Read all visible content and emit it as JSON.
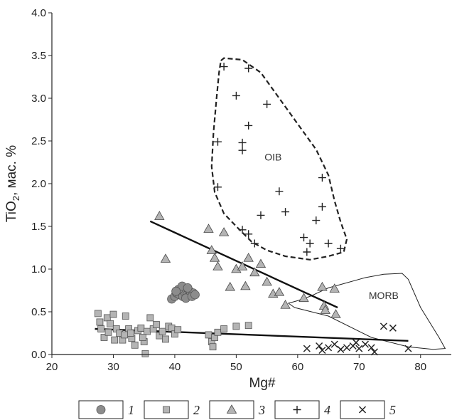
{
  "chart_data": {
    "type": "scatter",
    "title": "",
    "xlabel": "Mg#",
    "ylabel": {
      "base": "TiO",
      "sub": "2",
      "rest": ", мас. %"
    },
    "xlim": [
      20,
      85
    ],
    "ylim": [
      0,
      4.0
    ],
    "xticks": [
      "20",
      "30",
      "40",
      "50",
      "60",
      "70",
      "80"
    ],
    "yticks": [
      "0.0",
      "0.5",
      "1.0",
      "1.5",
      "2.0",
      "2.5",
      "3.0",
      "3.5",
      "4.0"
    ],
    "grid": false,
    "series": [
      {
        "name": "1",
        "marker": "circle",
        "color": "#8c8c8c",
        "points": [
          [
            39.5,
            0.65
          ],
          [
            40,
            0.68
          ],
          [
            40.3,
            0.72
          ],
          [
            40.8,
            0.7
          ],
          [
            41,
            0.75
          ],
          [
            41.3,
            0.68
          ],
          [
            41.6,
            0.73
          ],
          [
            42,
            0.7
          ],
          [
            42.3,
            0.75
          ],
          [
            42.6,
            0.71
          ],
          [
            43,
            0.72
          ],
          [
            41.8,
            0.66
          ],
          [
            40.6,
            0.76
          ],
          [
            42.8,
            0.68
          ],
          [
            41.2,
            0.8
          ],
          [
            40.2,
            0.74
          ],
          [
            43.3,
            0.7
          ],
          [
            42.1,
            0.78
          ]
        ]
      },
      {
        "name": "2",
        "marker": "square",
        "color": "#b4b4b4",
        "points": [
          [
            27.5,
            0.48
          ],
          [
            27.8,
            0.38
          ],
          [
            28,
            0.3
          ],
          [
            28.5,
            0.2
          ],
          [
            29,
            0.43
          ],
          [
            29.5,
            0.36
          ],
          [
            30,
            0.47
          ],
          [
            30.5,
            0.3
          ],
          [
            31,
            0.25
          ],
          [
            31.5,
            0.17
          ],
          [
            32,
            0.45
          ],
          [
            32.5,
            0.3
          ],
          [
            33,
            0.19
          ],
          [
            33.5,
            0.11
          ],
          [
            34,
            0.28
          ],
          [
            34.5,
            0.31
          ],
          [
            35,
            0.15
          ],
          [
            35.2,
            0.01
          ],
          [
            35.5,
            0.27
          ],
          [
            36,
            0.43
          ],
          [
            36.5,
            0.3
          ],
          [
            37,
            0.35
          ],
          [
            37.5,
            0.22
          ],
          [
            38,
            0.27
          ],
          [
            39,
            0.33
          ],
          [
            39.5,
            0.31
          ],
          [
            40,
            0.24
          ],
          [
            40.5,
            0.29
          ],
          [
            45.5,
            0.23
          ],
          [
            46,
            0.15
          ],
          [
            46.2,
            0.09
          ],
          [
            46.5,
            0.2
          ],
          [
            47,
            0.26
          ],
          [
            48,
            0.3
          ],
          [
            50,
            0.33
          ],
          [
            52,
            0.34
          ],
          [
            30.2,
            0.17
          ],
          [
            32.8,
            0.25
          ],
          [
            34.8,
            0.2
          ],
          [
            38.5,
            0.18
          ],
          [
            29.2,
            0.26
          ],
          [
            31.8,
            0.23
          ]
        ]
      },
      {
        "name": "3",
        "marker": "triangle",
        "color": "#b4b4b4",
        "points": [
          [
            37.5,
            1.62
          ],
          [
            38.5,
            1.12
          ],
          [
            45.5,
            1.47
          ],
          [
            46,
            1.22
          ],
          [
            47,
            1.03
          ],
          [
            48,
            1.43
          ],
          [
            50,
            1.0
          ],
          [
            51,
            1.03
          ],
          [
            52,
            1.13
          ],
          [
            53,
            0.96
          ],
          [
            54,
            1.06
          ],
          [
            55,
            0.85
          ],
          [
            56,
            0.71
          ],
          [
            57,
            0.73
          ],
          [
            58,
            0.58
          ],
          [
            61,
            0.66
          ],
          [
            64,
            0.79
          ],
          [
            64.3,
            0.57
          ],
          [
            64.5,
            0.52
          ],
          [
            66,
            0.77
          ],
          [
            66.2,
            0.47
          ],
          [
            51.5,
            0.8
          ],
          [
            46.5,
            1.13
          ],
          [
            49,
            0.79
          ]
        ]
      },
      {
        "name": "4",
        "marker": "plus",
        "color": "#222222",
        "points": [
          [
            48,
            3.37
          ],
          [
            52,
            3.35
          ],
          [
            50,
            3.03
          ],
          [
            55,
            2.93
          ],
          [
            52,
            2.68
          ],
          [
            47,
            2.49
          ],
          [
            51,
            2.48
          ],
          [
            51,
            2.39
          ],
          [
            64,
            2.07
          ],
          [
            47,
            1.96
          ],
          [
            57,
            1.91
          ],
          [
            58,
            1.67
          ],
          [
            54,
            1.63
          ],
          [
            63,
            1.57
          ],
          [
            64,
            1.73
          ],
          [
            51,
            1.46
          ],
          [
            52,
            1.41
          ],
          [
            61,
            1.37
          ],
          [
            62,
            1.3
          ],
          [
            65,
            1.3
          ],
          [
            61.5,
            1.2
          ],
          [
            67,
            1.24
          ],
          [
            53,
            1.3
          ]
        ]
      },
      {
        "name": "5",
        "marker": "x",
        "color": "#222222",
        "points": [
          [
            61.5,
            0.07
          ],
          [
            63.5,
            0.1
          ],
          [
            64,
            0.05
          ],
          [
            65,
            0.08
          ],
          [
            66,
            0.12
          ],
          [
            67,
            0.06
          ],
          [
            68,
            0.08
          ],
          [
            69,
            0.1
          ],
          [
            70,
            0.07
          ],
          [
            71,
            0.12
          ],
          [
            72,
            0.08
          ],
          [
            72.5,
            0.03
          ],
          [
            74,
            0.33
          ],
          [
            75.5,
            0.31
          ],
          [
            78,
            0.07
          ],
          [
            69.5,
            0.14
          ]
        ]
      }
    ],
    "trendlines": [
      {
        "from": [
          36,
          1.56
        ],
        "to": [
          66.5,
          0.55
        ]
      },
      {
        "from": [
          27,
          0.3
        ],
        "to": [
          78,
          0.16
        ]
      }
    ],
    "regions": [
      {
        "label": "OIB",
        "style": "dashed",
        "label_at": [
          56,
          2.27
        ],
        "polygon": [
          [
            47.5,
            3.44
          ],
          [
            48,
            3.47
          ],
          [
            51,
            3.45
          ],
          [
            54,
            3.3
          ],
          [
            57,
            3.0
          ],
          [
            60,
            2.7
          ],
          [
            63,
            2.4
          ],
          [
            65,
            2.1
          ],
          [
            66,
            1.8
          ],
          [
            67,
            1.55
          ],
          [
            68,
            1.35
          ],
          [
            67.5,
            1.2
          ],
          [
            65,
            1.15
          ],
          [
            62,
            1.11
          ],
          [
            58,
            1.15
          ],
          [
            55,
            1.22
          ],
          [
            52.5,
            1.32
          ],
          [
            50,
            1.5
          ],
          [
            48,
            1.65
          ],
          [
            46.5,
            1.9
          ],
          [
            46,
            2.2
          ],
          [
            46.3,
            2.6
          ],
          [
            46.8,
            3.0
          ],
          [
            47.2,
            3.3
          ]
        ]
      },
      {
        "label": "MORB",
        "style": "solid",
        "label_at": [
          74,
          0.65
        ],
        "polygon": [
          [
            60,
            0.63
          ],
          [
            62,
            0.68
          ],
          [
            65,
            0.78
          ],
          [
            67,
            0.82
          ],
          [
            71,
            0.9
          ],
          [
            74,
            0.94
          ],
          [
            77,
            0.95
          ],
          [
            78,
            0.88
          ],
          [
            80,
            0.55
          ],
          [
            83,
            0.2
          ],
          [
            84,
            0.07
          ],
          [
            82,
            0.06
          ],
          [
            78,
            0.09
          ],
          [
            72,
            0.2
          ],
          [
            65,
            0.45
          ],
          [
            59.5,
            0.55
          ],
          [
            58.5,
            0.6
          ]
        ]
      }
    ],
    "legend": {
      "placement": "bottom",
      "items": [
        "1",
        "2",
        "3",
        "4",
        "5"
      ]
    }
  }
}
